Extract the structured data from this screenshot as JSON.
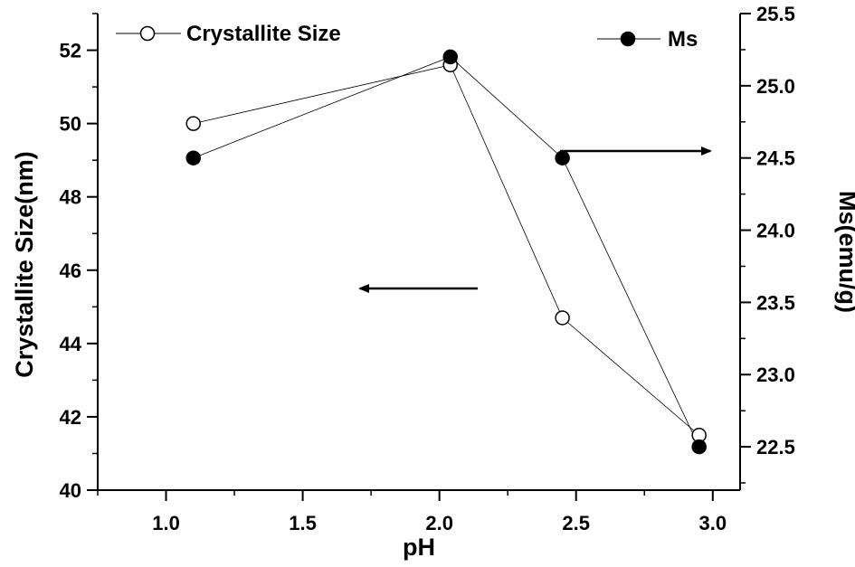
{
  "chart_data": {
    "type": "line",
    "xlabel": "pH",
    "ylabel_left": "Crystallite Size(nm)",
    "ylabel_right": "Ms(emu/g)",
    "xlim": [
      0.75,
      3.1
    ],
    "ylim_left": [
      40,
      53
    ],
    "ylim_right": [
      22.2,
      25.5
    ],
    "x_ticks": [
      "1.0",
      "1.5",
      "2.0",
      "2.5",
      "3.0"
    ],
    "x_tick_values": [
      1.0,
      1.5,
      2.0,
      2.5,
      3.0
    ],
    "y_left_ticks": [
      "40",
      "42",
      "44",
      "46",
      "48",
      "50",
      "52"
    ],
    "y_left_tick_values": [
      40,
      42,
      44,
      46,
      48,
      50,
      52
    ],
    "y_right_ticks": [
      "22.5",
      "23.0",
      "23.5",
      "24.0",
      "24.5",
      "25.0",
      "25.5"
    ],
    "y_right_tick_values": [
      22.5,
      23.0,
      23.5,
      24.0,
      24.5,
      25.0,
      25.5
    ],
    "series": [
      {
        "name": "Crystallite Size",
        "axis": "left",
        "marker": "open-circle",
        "x": [
          1.1,
          2.04,
          2.45,
          2.95
        ],
        "y": [
          50.0,
          51.6,
          44.7,
          41.5
        ]
      },
      {
        "name": "Ms",
        "axis": "right",
        "marker": "filled-circle",
        "x": [
          1.1,
          2.04,
          2.45,
          2.95
        ],
        "y": [
          24.5,
          25.2,
          24.5,
          22.5
        ]
      }
    ],
    "annotations": [
      {
        "type": "arrow",
        "direction": "left",
        "meaning": "Crystallite Size uses left axis"
      },
      {
        "type": "arrow",
        "direction": "right",
        "meaning": "Ms uses right axis"
      }
    ],
    "legend": [
      "Crystallite Size",
      "Ms"
    ],
    "grid": false
  }
}
